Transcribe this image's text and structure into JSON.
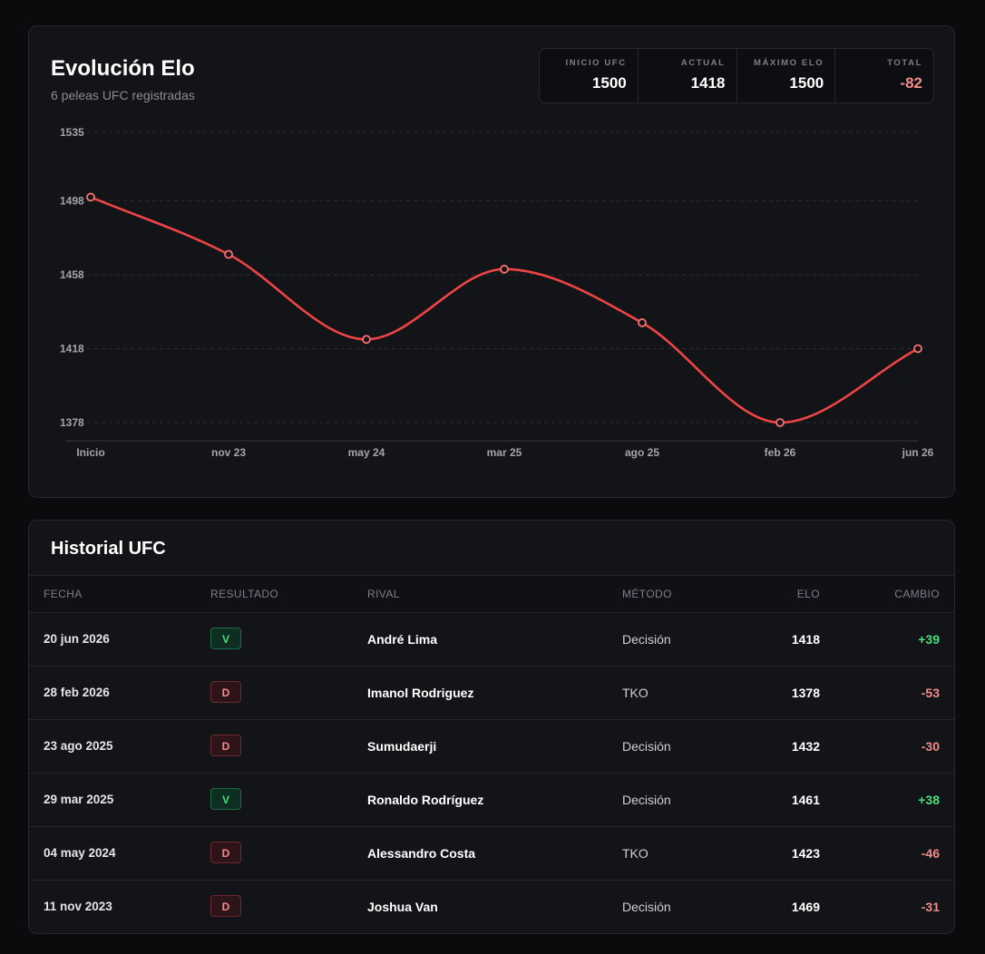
{
  "elo_panel": {
    "title": "Evolución Elo",
    "subtitle": "6 peleas UFC registradas",
    "stats": [
      {
        "label": "INICIO UFC",
        "value": "1500",
        "tone": "neutral"
      },
      {
        "label": "ACTUAL",
        "value": "1418",
        "tone": "neutral"
      },
      {
        "label": "MÁXIMO ELO",
        "value": "1500",
        "tone": "neutral"
      },
      {
        "label": "TOTAL",
        "value": "-82",
        "tone": "negative"
      }
    ]
  },
  "chart_data": {
    "type": "line",
    "categories": [
      "Inicio",
      "nov 23",
      "may 24",
      "mar 25",
      "ago 25",
      "feb 26",
      "jun 26"
    ],
    "series": [
      {
        "values": [
          1500,
          1469,
          1423,
          1461,
          1432,
          1378,
          1418
        ]
      }
    ],
    "y_ticks": [
      1535,
      1498,
      1458,
      1418,
      1378
    ],
    "ylim": [
      1378,
      1535
    ],
    "grid": true,
    "line_color": "#ef4444",
    "title": "",
    "xlabel": "",
    "ylabel": ""
  },
  "history": {
    "title": "Historial UFC",
    "columns": [
      "FECHA",
      "RESULTADO",
      "RIVAL",
      "MÉTODO",
      "ELO",
      "CAMBIO"
    ],
    "rows": [
      {
        "date": "20 jun 2026",
        "result": "V",
        "rival": "André Lima",
        "method": "Decisión",
        "elo": "1418",
        "change": "+39"
      },
      {
        "date": "28 feb 2026",
        "result": "D",
        "rival": "Imanol Rodriguez",
        "method": "TKO",
        "elo": "1378",
        "change": "-53"
      },
      {
        "date": "23 ago 2025",
        "result": "D",
        "rival": "Sumudaerji",
        "method": "Decisión",
        "elo": "1432",
        "change": "-30"
      },
      {
        "date": "29 mar 2025",
        "result": "V",
        "rival": "Ronaldo Rodríguez",
        "method": "Decisión",
        "elo": "1461",
        "change": "+38"
      },
      {
        "date": "04 may 2024",
        "result": "D",
        "rival": "Alessandro Costa",
        "method": "TKO",
        "elo": "1423",
        "change": "-46"
      },
      {
        "date": "11 nov 2023",
        "result": "D",
        "rival": "Joshua Van",
        "method": "Decisión",
        "elo": "1469",
        "change": "-31"
      }
    ]
  },
  "colors": {
    "accent_line": "#ef4444",
    "positive": "#4ade80",
    "negative": "#f28b8b"
  }
}
